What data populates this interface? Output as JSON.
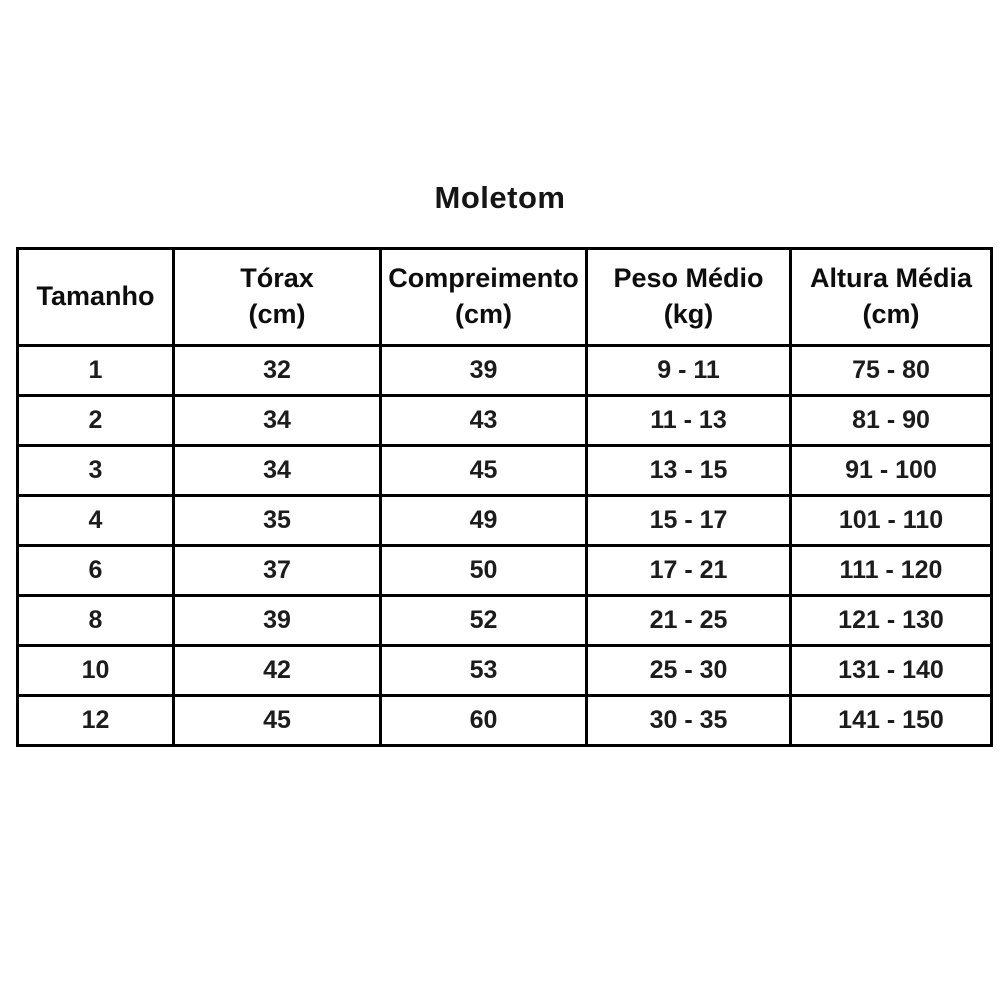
{
  "title": "Moletom",
  "colors": {
    "border": "#000000",
    "text": "#1c1c1c",
    "background": "#ffffff"
  },
  "chart_data": {
    "type": "table",
    "title": "Moletom",
    "legend_position": "none",
    "grid": "on",
    "columns": [
      {
        "label": "Tamanho",
        "unit": ""
      },
      {
        "label": "Tórax",
        "unit": "(cm)"
      },
      {
        "label": "Compreimento",
        "unit": "(cm)"
      },
      {
        "label": "Peso Médio",
        "unit": "(kg)"
      },
      {
        "label": "Altura Média",
        "unit": "(cm)"
      }
    ],
    "rows": [
      [
        "1",
        "32",
        "39",
        "9 - 11",
        "75 - 80"
      ],
      [
        "2",
        "34",
        "43",
        "11 - 13",
        "81 - 90"
      ],
      [
        "3",
        "34",
        "45",
        "13 - 15",
        "91 - 100"
      ],
      [
        "4",
        "35",
        "49",
        "15 - 17",
        "101 - 110"
      ],
      [
        "6",
        "37",
        "50",
        "17 - 21",
        "111 - 120"
      ],
      [
        "8",
        "39",
        "52",
        "21 - 25",
        "121 - 130"
      ],
      [
        "10",
        "42",
        "53",
        "25 - 30",
        "131 - 140"
      ],
      [
        "12",
        "45",
        "60",
        "30 - 35",
        "141 - 150"
      ]
    ]
  }
}
